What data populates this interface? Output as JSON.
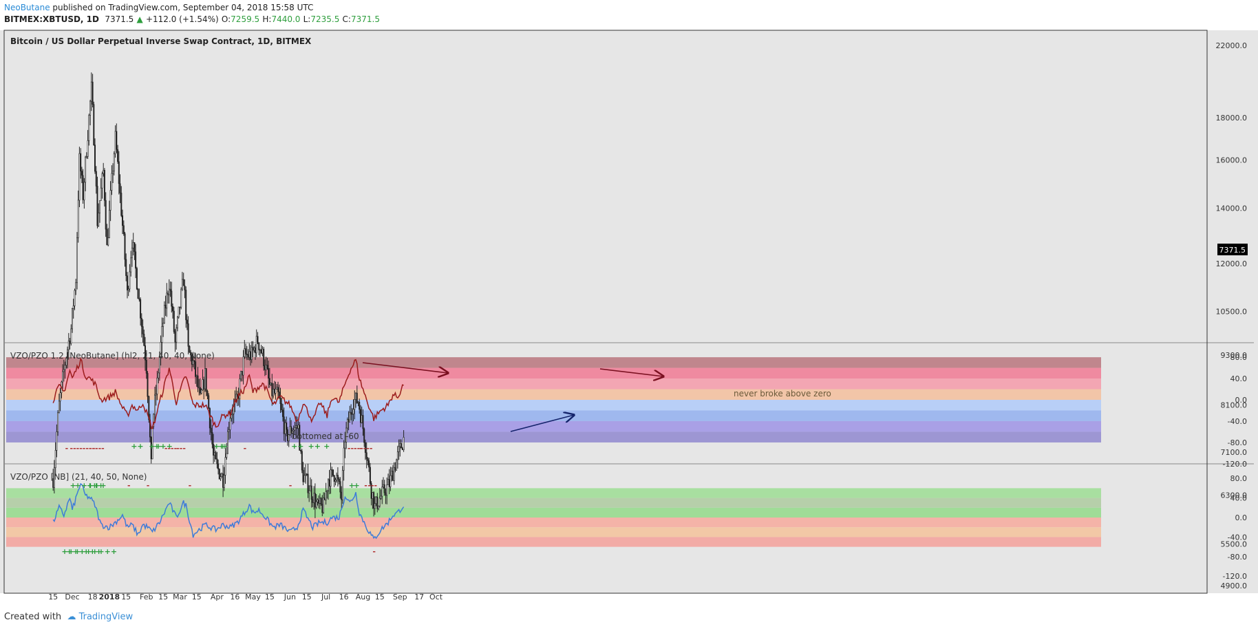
{
  "header": {
    "author": "NeoButane",
    "published": "published on TradingView.com, September 04, 2018 15:58 UTC",
    "symbol": "BITMEX:XBTUSD, 1D",
    "last": "7371.5",
    "change": "+112.0 (+1.54%)",
    "o_label": "O:",
    "o": "7259.5",
    "h_label": "H:",
    "h": "7440.0",
    "l_label": "L:",
    "l": "7235.5",
    "c_label": "C:",
    "c": "7371.5"
  },
  "footer": {
    "created_with": "Created with",
    "brand": "TradingView"
  },
  "colors": {
    "price_up": "#ffffff",
    "price_down": "#222222",
    "pzo_line": "#9b1c1c",
    "vzo_line": "#3d7bd9",
    "plus": "#2e9e3d",
    "minus": "#b03030"
  },
  "chart_data": [
    {
      "type": "candlestick",
      "title": "Bitcoin / US Dollar Perpetual Inverse Swap Contract, 1D, BITMEX",
      "scale": "log",
      "y_ticks": [
        "22000.0",
        "18000.0",
        "16000.0",
        "14000.0",
        "12000.0",
        "10500.0",
        "9300.0",
        "8100.0",
        "7100.0",
        "6300.0",
        "5500.0",
        "4900.0"
      ],
      "y_tick_values": [
        22000,
        18000,
        16000,
        14000,
        12000,
        10500,
        9300,
        8100,
        7100,
        6300,
        5500,
        4900
      ],
      "last_price_label": "7371.5",
      "x_ticks": [
        "15",
        "Dec",
        "18",
        "2018",
        "15",
        "Feb",
        "15",
        "Mar",
        "15",
        "Apr",
        "16",
        "May",
        "15",
        "Jun",
        "15",
        "Jul",
        "16",
        "Aug",
        "15",
        "Sep",
        "17",
        "Oct"
      ],
      "close_anchors": [
        [
          "2017-11-15",
          6600
        ],
        [
          "2017-11-20",
          8100
        ],
        [
          "2017-11-26",
          9300
        ],
        [
          "2017-11-30",
          10000
        ],
        [
          "2017-12-04",
          11500
        ],
        [
          "2017-12-07",
          16000
        ],
        [
          "2017-12-10",
          14500
        ],
        [
          "2017-12-13",
          16500
        ],
        [
          "2017-12-17",
          19500
        ],
        [
          "2017-12-22",
          13500
        ],
        [
          "2017-12-27",
          15500
        ],
        [
          "2017-12-30",
          12500
        ],
        [
          "2018-01-06",
          17000
        ],
        [
          "2018-01-10",
          14500
        ],
        [
          "2018-01-16",
          11000
        ],
        [
          "2018-01-20",
          12800
        ],
        [
          "2018-01-25",
          11100
        ],
        [
          "2018-02-01",
          9000
        ],
        [
          "2018-02-05",
          6800
        ],
        [
          "2018-02-06",
          7700
        ],
        [
          "2018-02-10",
          8600
        ],
        [
          "2018-02-15",
          10200
        ],
        [
          "2018-02-20",
          11400
        ],
        [
          "2018-02-25",
          9600
        ],
        [
          "2018-03-04",
          11500
        ],
        [
          "2018-03-08",
          9400
        ],
        [
          "2018-03-12",
          9100
        ],
        [
          "2018-03-18",
          8200
        ],
        [
          "2018-03-22",
          8800
        ],
        [
          "2018-03-29",
          7000
        ],
        [
          "2018-04-01",
          6800
        ],
        [
          "2018-04-06",
          6600
        ],
        [
          "2018-04-12",
          7900
        ],
        [
          "2018-04-18",
          8200
        ],
        [
          "2018-04-24",
          9300
        ],
        [
          "2018-04-30",
          9300
        ],
        [
          "2018-05-05",
          9700
        ],
        [
          "2018-05-10",
          9200
        ],
        [
          "2018-05-16",
          8400
        ],
        [
          "2018-05-22",
          8300
        ],
        [
          "2018-05-29",
          7400
        ],
        [
          "2018-06-03",
          7600
        ],
        [
          "2018-06-08",
          7600
        ],
        [
          "2018-06-11",
          6700
        ],
        [
          "2018-06-17",
          6450
        ],
        [
          "2018-06-24",
          6100
        ],
        [
          "2018-06-29",
          6100
        ],
        [
          "2018-07-03",
          6600
        ],
        [
          "2018-07-09",
          6700
        ],
        [
          "2018-07-14",
          6250
        ],
        [
          "2018-07-17",
          7400
        ],
        [
          "2018-07-24",
          8200
        ],
        [
          "2018-07-28",
          8200
        ],
        [
          "2018-08-01",
          7600
        ],
        [
          "2018-08-08",
          6400
        ],
        [
          "2018-08-11",
          6100
        ],
        [
          "2018-08-18",
          6350
        ],
        [
          "2018-08-23",
          6500
        ],
        [
          "2018-08-27",
          6800
        ],
        [
          "2018-09-04",
          7371.5
        ]
      ]
    },
    {
      "type": "line",
      "title": "VZO/PZO 1.2 [NeoButane] (hl2, 21, 40, 40, None)",
      "y_ticks": [
        "80.0",
        "40.0",
        "0.0",
        "-40.0",
        "-80.0",
        "-120.0"
      ],
      "y_tick_values": [
        80,
        40,
        0,
        -40,
        -80,
        -120
      ],
      "annotations": [
        "never broke above zero",
        "bottomed at -60"
      ],
      "signals_plus": [
        "++",
        "++",
        "+++",
        "++",
        "+",
        "+",
        "++",
        "++",
        "+"
      ],
      "signals_minus": [
        "-",
        "-----------",
        "--",
        "----",
        "---",
        "-",
        "--------",
        "-"
      ],
      "anchors": [
        [
          "2017-11-15",
          0
        ],
        [
          "2017-11-20",
          25
        ],
        [
          "2017-11-24",
          15
        ],
        [
          "2017-11-29",
          55
        ],
        [
          "2017-12-01",
          40
        ],
        [
          "2017-12-08",
          75
        ],
        [
          "2017-12-12",
          45
        ],
        [
          "2017-12-16",
          40
        ],
        [
          "2017-12-20",
          30
        ],
        [
          "2017-12-25",
          0
        ],
        [
          "2018-01-01",
          5
        ],
        [
          "2018-01-06",
          15
        ],
        [
          "2018-01-12",
          -15
        ],
        [
          "2018-01-16",
          -30
        ],
        [
          "2018-01-20",
          -10
        ],
        [
          "2018-01-25",
          -20
        ],
        [
          "2018-01-29",
          -5
        ],
        [
          "2018-02-02",
          -30
        ],
        [
          "2018-02-06",
          -55
        ],
        [
          "2018-02-12",
          -5
        ],
        [
          "2018-02-20",
          60
        ],
        [
          "2018-02-26",
          -5
        ],
        [
          "2018-03-04",
          35
        ],
        [
          "2018-03-06",
          45
        ],
        [
          "2018-03-12",
          -10
        ],
        [
          "2018-03-22",
          -10
        ],
        [
          "2018-03-31",
          -50
        ],
        [
          "2018-04-06",
          -30
        ],
        [
          "2018-04-12",
          -25
        ],
        [
          "2018-04-18",
          5
        ],
        [
          "2018-04-24",
          20
        ],
        [
          "2018-04-28",
          45
        ],
        [
          "2018-05-01",
          15
        ],
        [
          "2018-05-06",
          25
        ],
        [
          "2018-05-10",
          30
        ],
        [
          "2018-05-18",
          -10
        ],
        [
          "2018-05-24",
          5
        ],
        [
          "2018-06-01",
          -10
        ],
        [
          "2018-06-07",
          -40
        ],
        [
          "2018-06-12",
          -5
        ],
        [
          "2018-06-20",
          -40
        ],
        [
          "2018-06-26",
          -5
        ],
        [
          "2018-07-02",
          -30
        ],
        [
          "2018-07-06",
          5
        ],
        [
          "2018-07-12",
          -5
        ],
        [
          "2018-07-17",
          30
        ],
        [
          "2018-07-21",
          55
        ],
        [
          "2018-07-26",
          75
        ],
        [
          "2018-07-29",
          40
        ],
        [
          "2018-08-04",
          0
        ],
        [
          "2018-08-10",
          -35
        ],
        [
          "2018-08-16",
          -20
        ],
        [
          "2018-08-22",
          -10
        ],
        [
          "2018-08-26",
          10
        ],
        [
          "2018-08-30",
          5
        ],
        [
          "2018-09-04",
          30
        ]
      ]
    },
    {
      "type": "line",
      "title": "VZO/PZO [NB] (21, 40, 50, None)",
      "y_ticks": [
        "80.0",
        "40.0",
        "0.0",
        "-40.0",
        "-80.0",
        "-120.0"
      ],
      "y_tick_values": [
        80,
        40,
        0,
        -40,
        -80,
        -120
      ],
      "signals_plus": [
        "+",
        "+++++",
        "++",
        "++",
        "+++",
        "++++++++",
        "+++",
        "+",
        "+"
      ],
      "signals_minus": [
        "-",
        "-",
        "-",
        "-",
        "-",
        "---",
        "-"
      ],
      "anchors": [
        [
          "2017-11-15",
          -10
        ],
        [
          "2017-11-20",
          20
        ],
        [
          "2017-11-24",
          5
        ],
        [
          "2017-11-29",
          40
        ],
        [
          "2017-12-01",
          15
        ],
        [
          "2017-12-08",
          70
        ],
        [
          "2017-12-12",
          45
        ],
        [
          "2017-12-16",
          40
        ],
        [
          "2017-12-20",
          25
        ],
        [
          "2017-12-25",
          -15
        ],
        [
          "2018-01-01",
          -20
        ],
        [
          "2018-01-06",
          -10
        ],
        [
          "2018-01-12",
          5
        ],
        [
          "2018-01-16",
          -20
        ],
        [
          "2018-01-20",
          -15
        ],
        [
          "2018-01-25",
          -35
        ],
        [
          "2018-01-29",
          -15
        ],
        [
          "2018-02-02",
          -20
        ],
        [
          "2018-02-06",
          -30
        ],
        [
          "2018-02-12",
          -10
        ],
        [
          "2018-02-20",
          30
        ],
        [
          "2018-02-26",
          0
        ],
        [
          "2018-03-04",
          30
        ],
        [
          "2018-03-06",
          25
        ],
        [
          "2018-03-12",
          -35
        ],
        [
          "2018-03-22",
          -15
        ],
        [
          "2018-03-31",
          -25
        ],
        [
          "2018-04-06",
          -15
        ],
        [
          "2018-04-12",
          -20
        ],
        [
          "2018-04-18",
          -10
        ],
        [
          "2018-04-24",
          10
        ],
        [
          "2018-04-28",
          25
        ],
        [
          "2018-05-01",
          10
        ],
        [
          "2018-05-06",
          15
        ],
        [
          "2018-05-10",
          5
        ],
        [
          "2018-05-18",
          -20
        ],
        [
          "2018-05-24",
          -15
        ],
        [
          "2018-06-01",
          -30
        ],
        [
          "2018-06-07",
          -20
        ],
        [
          "2018-06-12",
          15
        ],
        [
          "2018-06-20",
          -20
        ],
        [
          "2018-06-26",
          -10
        ],
        [
          "2018-07-02",
          -10
        ],
        [
          "2018-07-06",
          0
        ],
        [
          "2018-07-12",
          0
        ],
        [
          "2018-07-17",
          45
        ],
        [
          "2018-07-21",
          30
        ],
        [
          "2018-07-26",
          50
        ],
        [
          "2018-07-29",
          10
        ],
        [
          "2018-08-04",
          -20
        ],
        [
          "2018-08-10",
          -45
        ],
        [
          "2018-08-16",
          -25
        ],
        [
          "2018-08-22",
          -10
        ],
        [
          "2018-08-26",
          5
        ],
        [
          "2018-08-30",
          10
        ],
        [
          "2018-09-04",
          25
        ]
      ]
    }
  ]
}
